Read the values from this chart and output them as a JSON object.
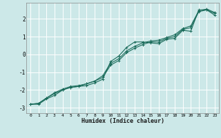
{
  "xlabel": "Humidex (Indice chaleur)",
  "background_color": "#cce8e8",
  "grid_color": "#ffffff",
  "line_color": "#1a6b5a",
  "xlim": [
    -0.5,
    23.5
  ],
  "ylim": [
    -3.3,
    2.9
  ],
  "xticks": [
    0,
    1,
    2,
    3,
    4,
    5,
    6,
    7,
    8,
    9,
    10,
    11,
    12,
    13,
    14,
    15,
    16,
    17,
    18,
    19,
    20,
    21,
    22,
    23
  ],
  "yticks": [
    -3,
    -2,
    -1,
    0,
    1,
    2
  ],
  "series1_x": [
    0,
    1,
    2,
    3,
    4,
    5,
    6,
    7,
    8,
    9,
    10,
    11,
    12,
    13,
    14,
    15,
    16,
    17,
    18,
    19,
    20,
    21,
    22,
    23
  ],
  "series1_y": [
    -2.8,
    -2.8,
    -2.5,
    -2.3,
    -2.0,
    -1.85,
    -1.8,
    -1.75,
    -1.6,
    -1.4,
    -0.4,
    -0.1,
    0.4,
    0.7,
    0.7,
    0.65,
    0.6,
    0.85,
    0.9,
    1.35,
    1.3,
    2.5,
    2.5,
    2.2
  ],
  "series2_x": [
    0,
    1,
    2,
    3,
    4,
    5,
    6,
    7,
    8,
    9,
    10,
    11,
    12,
    13,
    14,
    15,
    16,
    17,
    18,
    19,
    20,
    21,
    22,
    23
  ],
  "series2_y": [
    -2.8,
    -2.75,
    -2.45,
    -2.2,
    -2.0,
    -1.85,
    -1.8,
    -1.65,
    -1.5,
    -1.3,
    -0.6,
    -0.35,
    0.1,
    0.35,
    0.55,
    0.7,
    0.7,
    0.9,
    1.0,
    1.4,
    1.5,
    2.4,
    2.5,
    2.3
  ],
  "series3_x": [
    0,
    1,
    2,
    3,
    4,
    5,
    6,
    7,
    8,
    9,
    10,
    11,
    12,
    13,
    14,
    15,
    16,
    17,
    18,
    19,
    20,
    21,
    22,
    23
  ],
  "series3_y": [
    -2.8,
    -2.75,
    -2.45,
    -2.15,
    -1.95,
    -1.8,
    -1.75,
    -1.65,
    -1.5,
    -1.2,
    -0.5,
    -0.25,
    0.2,
    0.45,
    0.65,
    0.75,
    0.8,
    0.95,
    1.1,
    1.45,
    1.6,
    2.45,
    2.55,
    2.35
  ]
}
